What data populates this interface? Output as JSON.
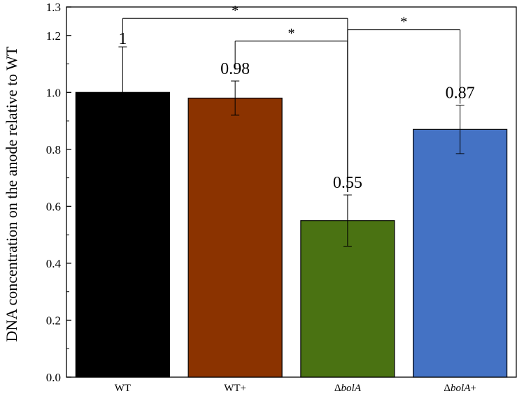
{
  "chart_data": {
    "type": "bar",
    "title": "",
    "xlabel": "",
    "ylabel": "DNA concentration on the anode relative to WT",
    "ylim": [
      0.0,
      1.3
    ],
    "yticks": [
      0.0,
      0.2,
      0.4,
      0.6,
      0.8,
      1.0,
      1.2,
      1.3
    ],
    "ytick_labels": [
      "0.0",
      "0.2",
      "0.4",
      "0.6",
      "0.8",
      "1.0",
      "1.2",
      "1.3"
    ],
    "grid": false,
    "categories": [
      {
        "prefix": "",
        "italic": "",
        "suffix": "WT"
      },
      {
        "prefix": "",
        "italic": "",
        "suffix": "WT+"
      },
      {
        "prefix": "Δ",
        "italic": "bolA",
        "suffix": ""
      },
      {
        "prefix": "Δ",
        "italic": "bolA",
        "suffix": "+"
      }
    ],
    "values": [
      1.0,
      0.98,
      0.55,
      0.87
    ],
    "errors": [
      0.16,
      0.06,
      0.09,
      0.085
    ],
    "value_labels": [
      "1",
      "0.98",
      "0.55",
      "0.87"
    ],
    "colors": [
      "#000000",
      "#8b3300",
      "#4a7212",
      "#4472c4"
    ],
    "significance": [
      {
        "from": 0,
        "to": 2,
        "label": "*"
      },
      {
        "from": 1,
        "to": 2,
        "label": "*"
      },
      {
        "from": 2,
        "to": 3,
        "label": "*"
      }
    ]
  }
}
